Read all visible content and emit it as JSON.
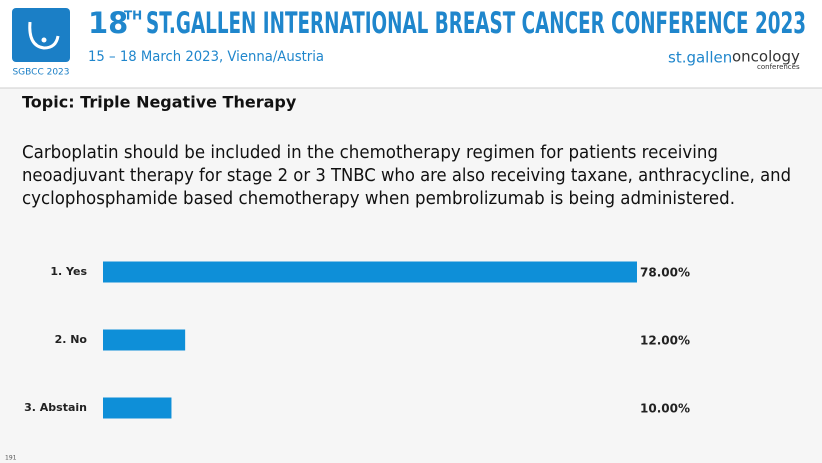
{
  "header": {
    "logo_text": "SGBCC 2023",
    "title_number": "18",
    "title_superscript": "TH",
    "title": "ST.GALLEN INTERNATIONAL BREAST CANCER CONFERENCE 2023",
    "subtitle": "15 – 18 March 2023, Vienna/Austria",
    "brand_1": "st.gallen",
    "brand_2": "oncology",
    "brand_3": "conferences"
  },
  "topic": "Topic: Triple Negative Therapy",
  "question_lines": [
    "Carboplatin should be included in the chemotherapy regimen for patients receiving",
    "neoadjuvant therapy for stage 2 or 3 TNBC who are also receiving taxane, anthracycline, and",
    "cyclophosphamide based chemotherapy when pembrolizumab is being administered."
  ],
  "page_number": "191",
  "chart_data": {
    "type": "bar",
    "orientation": "horizontal",
    "categories": [
      "1.  Yes",
      "2.  No",
      "3.  Abstain"
    ],
    "values": [
      78,
      12,
      10
    ],
    "value_labels": [
      "78.00%",
      "12.00%",
      "10.00%"
    ],
    "color": "#0e8fd8"
  }
}
